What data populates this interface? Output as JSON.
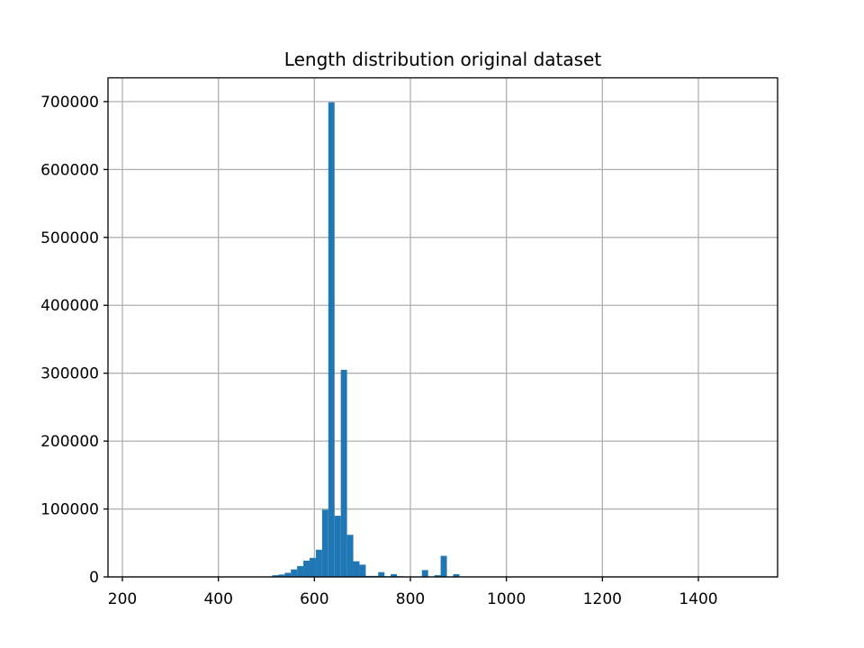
{
  "chart_data": {
    "type": "bar",
    "title": "Length distribution original dataset",
    "xlabel": "",
    "ylabel": "",
    "xlim": [
      170,
      1565
    ],
    "ylim": [
      0,
      735000
    ],
    "grid": true,
    "x_ticks": [
      200,
      400,
      600,
      800,
      1000,
      1200,
      1400
    ],
    "y_ticks": [
      0,
      100000,
      200000,
      300000,
      400000,
      500000,
      600000,
      700000
    ],
    "bin_width": 13,
    "bins": [
      {
        "x": 512,
        "value": 2500
      },
      {
        "x": 525,
        "value": 3500
      },
      {
        "x": 538,
        "value": 6000
      },
      {
        "x": 551,
        "value": 11000
      },
      {
        "x": 564,
        "value": 16000
      },
      {
        "x": 577,
        "value": 24000
      },
      {
        "x": 590,
        "value": 28000
      },
      {
        "x": 603,
        "value": 40000
      },
      {
        "x": 616,
        "value": 99000
      },
      {
        "x": 629,
        "value": 699000
      },
      {
        "x": 642,
        "value": 90000
      },
      {
        "x": 655,
        "value": 305000
      },
      {
        "x": 668,
        "value": 62000
      },
      {
        "x": 681,
        "value": 23000
      },
      {
        "x": 694,
        "value": 18000
      },
      {
        "x": 707,
        "value": 1500
      },
      {
        "x": 720,
        "value": 1500
      },
      {
        "x": 733,
        "value": 7000
      },
      {
        "x": 746,
        "value": 1000
      },
      {
        "x": 759,
        "value": 4000
      },
      {
        "x": 772,
        "value": 1000
      },
      {
        "x": 785,
        "value": 500
      },
      {
        "x": 798,
        "value": 500
      },
      {
        "x": 811,
        "value": 500
      },
      {
        "x": 824,
        "value": 10000
      },
      {
        "x": 837,
        "value": 500
      },
      {
        "x": 850,
        "value": 2500
      },
      {
        "x": 863,
        "value": 31000
      },
      {
        "x": 876,
        "value": 500
      },
      {
        "x": 889,
        "value": 4000
      }
    ],
    "bar_color": "#1f77b4"
  }
}
